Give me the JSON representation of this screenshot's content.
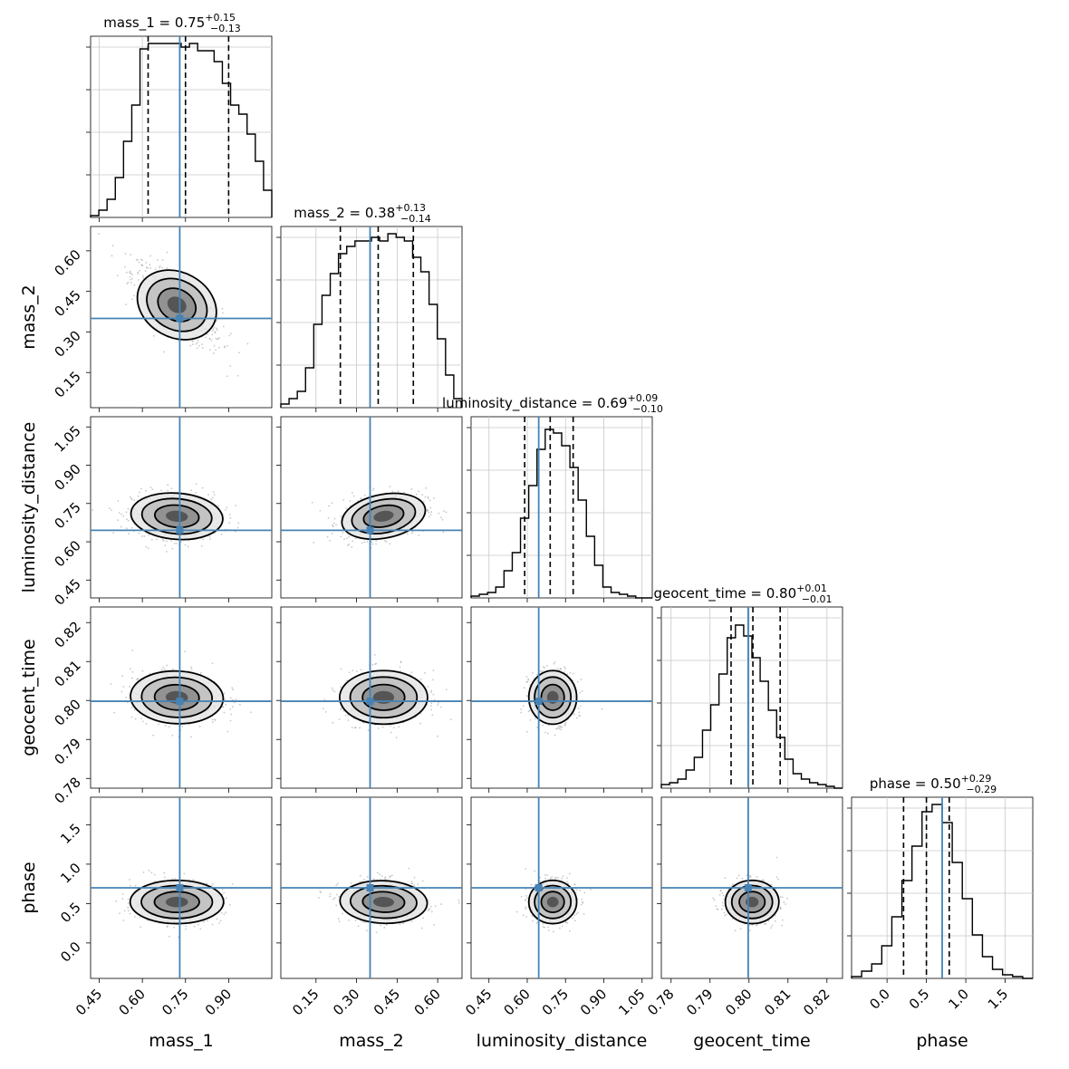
{
  "chart_data": {
    "type": "corner",
    "parameters": [
      "mass_1",
      "mass_2",
      "luminosity_distance",
      "geocent_time",
      "phase"
    ],
    "axis_labels": [
      "mass_1",
      "mass_2",
      "luminosity_distance",
      "geocent_time",
      "phase"
    ],
    "ranges": [
      [
        0.42,
        1.05
      ],
      [
        0.02,
        0.69
      ],
      [
        0.38,
        1.09
      ],
      [
        0.7775,
        0.824
      ],
      [
        -0.45,
        1.85
      ]
    ],
    "ticks": [
      [
        "0.45",
        "0.60",
        "0.75",
        "0.90"
      ],
      [
        "0.15",
        "0.30",
        "0.45",
        "0.60"
      ],
      [
        "0.45",
        "0.60",
        "0.75",
        "0.90",
        "1.05"
      ],
      [
        "0.78",
        "0.79",
        "0.80",
        "0.81",
        "0.82"
      ],
      [
        "0.0",
        "0.5",
        "1.0",
        "1.5"
      ]
    ],
    "truths": [
      0.73,
      0.35,
      0.645,
      0.7998,
      0.7
    ],
    "truth_color": "#4682b4",
    "titles": [
      {
        "name": "mass_1",
        "median": "0.75",
        "upper": "+0.15",
        "lower": "−0.13",
        "quantiles": [
          0.62,
          0.75,
          0.9
        ]
      },
      {
        "name": "mass_2",
        "median": "0.38",
        "upper": "+0.13",
        "lower": "−0.14",
        "quantiles": [
          0.24,
          0.38,
          0.51
        ]
      },
      {
        "name": "luminosity_distance",
        "median": "0.69",
        "upper": "+0.09",
        "lower": "−0.10",
        "quantiles": [
          0.59,
          0.69,
          0.78
        ]
      },
      {
        "name": "geocent_time",
        "median": "0.80",
        "upper": "+0.01",
        "lower": "−0.01",
        "quantiles": [
          0.7954,
          0.801,
          0.808
        ]
      },
      {
        "name": "phase",
        "median": "0.50",
        "upper": "+0.29",
        "lower": "−0.29",
        "quantiles": [
          0.21,
          0.5,
          0.79
        ]
      }
    ],
    "histograms": [
      {
        "edges_range": [
          0.42,
          1.05
        ],
        "counts": [
          0.01,
          0.04,
          0.1,
          0.22,
          0.42,
          0.62,
          0.93,
          0.96,
          0.96,
          0.96,
          0.96,
          0.94,
          0.96,
          0.92,
          0.92,
          0.86,
          0.74,
          0.62,
          0.57,
          0.46,
          0.31,
          0.15
        ]
      },
      {
        "edges_range": [
          0.02,
          0.69
        ],
        "counts": [
          0.02,
          0.05,
          0.09,
          0.22,
          0.46,
          0.62,
          0.74,
          0.85,
          0.89,
          0.92,
          0.92,
          0.94,
          0.92,
          0.96,
          0.94,
          0.92,
          0.83,
          0.75,
          0.57,
          0.38,
          0.18,
          0.05
        ]
      },
      {
        "edges_range": [
          0.38,
          1.09
        ],
        "counts": [
          0.01,
          0.02,
          0.03,
          0.06,
          0.15,
          0.25,
          0.44,
          0.62,
          0.82,
          0.93,
          0.91,
          0.84,
          0.72,
          0.54,
          0.34,
          0.18,
          0.06,
          0.03,
          0.02,
          0.01,
          0.0,
          0.0
        ]
      },
      {
        "edges_range": [
          0.7775,
          0.824
        ],
        "counts": [
          0.02,
          0.03,
          0.05,
          0.1,
          0.17,
          0.32,
          0.46,
          0.63,
          0.83,
          0.9,
          0.84,
          0.72,
          0.59,
          0.43,
          0.28,
          0.16,
          0.08,
          0.05,
          0.03,
          0.02,
          0.01,
          0.0
        ]
      },
      {
        "edges_range": [
          -0.45,
          1.85
        ],
        "counts": [
          0.01,
          0.04,
          0.08,
          0.18,
          0.34,
          0.54,
          0.73,
          0.92,
          0.96,
          0.86,
          0.64,
          0.44,
          0.24,
          0.12,
          0.05,
          0.02,
          0.01,
          0.0
        ]
      }
    ],
    "correlations": [
      [
        1.0,
        -0.75,
        -0.1,
        -0.05,
        0.0
      ],
      [
        -0.75,
        1.0,
        0.25,
        0.0,
        -0.05
      ],
      [
        -0.1,
        0.25,
        1.0,
        0.0,
        0.0
      ],
      [
        -0.05,
        0.0,
        0.0,
        1.0,
        0.0
      ],
      [
        0.0,
        -0.05,
        0.0,
        0.0,
        1.0
      ]
    ],
    "posterior_centers": [
      0.72,
      0.4,
      0.7,
      0.8008,
      0.52
    ],
    "posterior_widths": [
      0.13,
      0.13,
      0.075,
      0.0055,
      0.22
    ],
    "grid": true,
    "contour_levels": 3
  }
}
